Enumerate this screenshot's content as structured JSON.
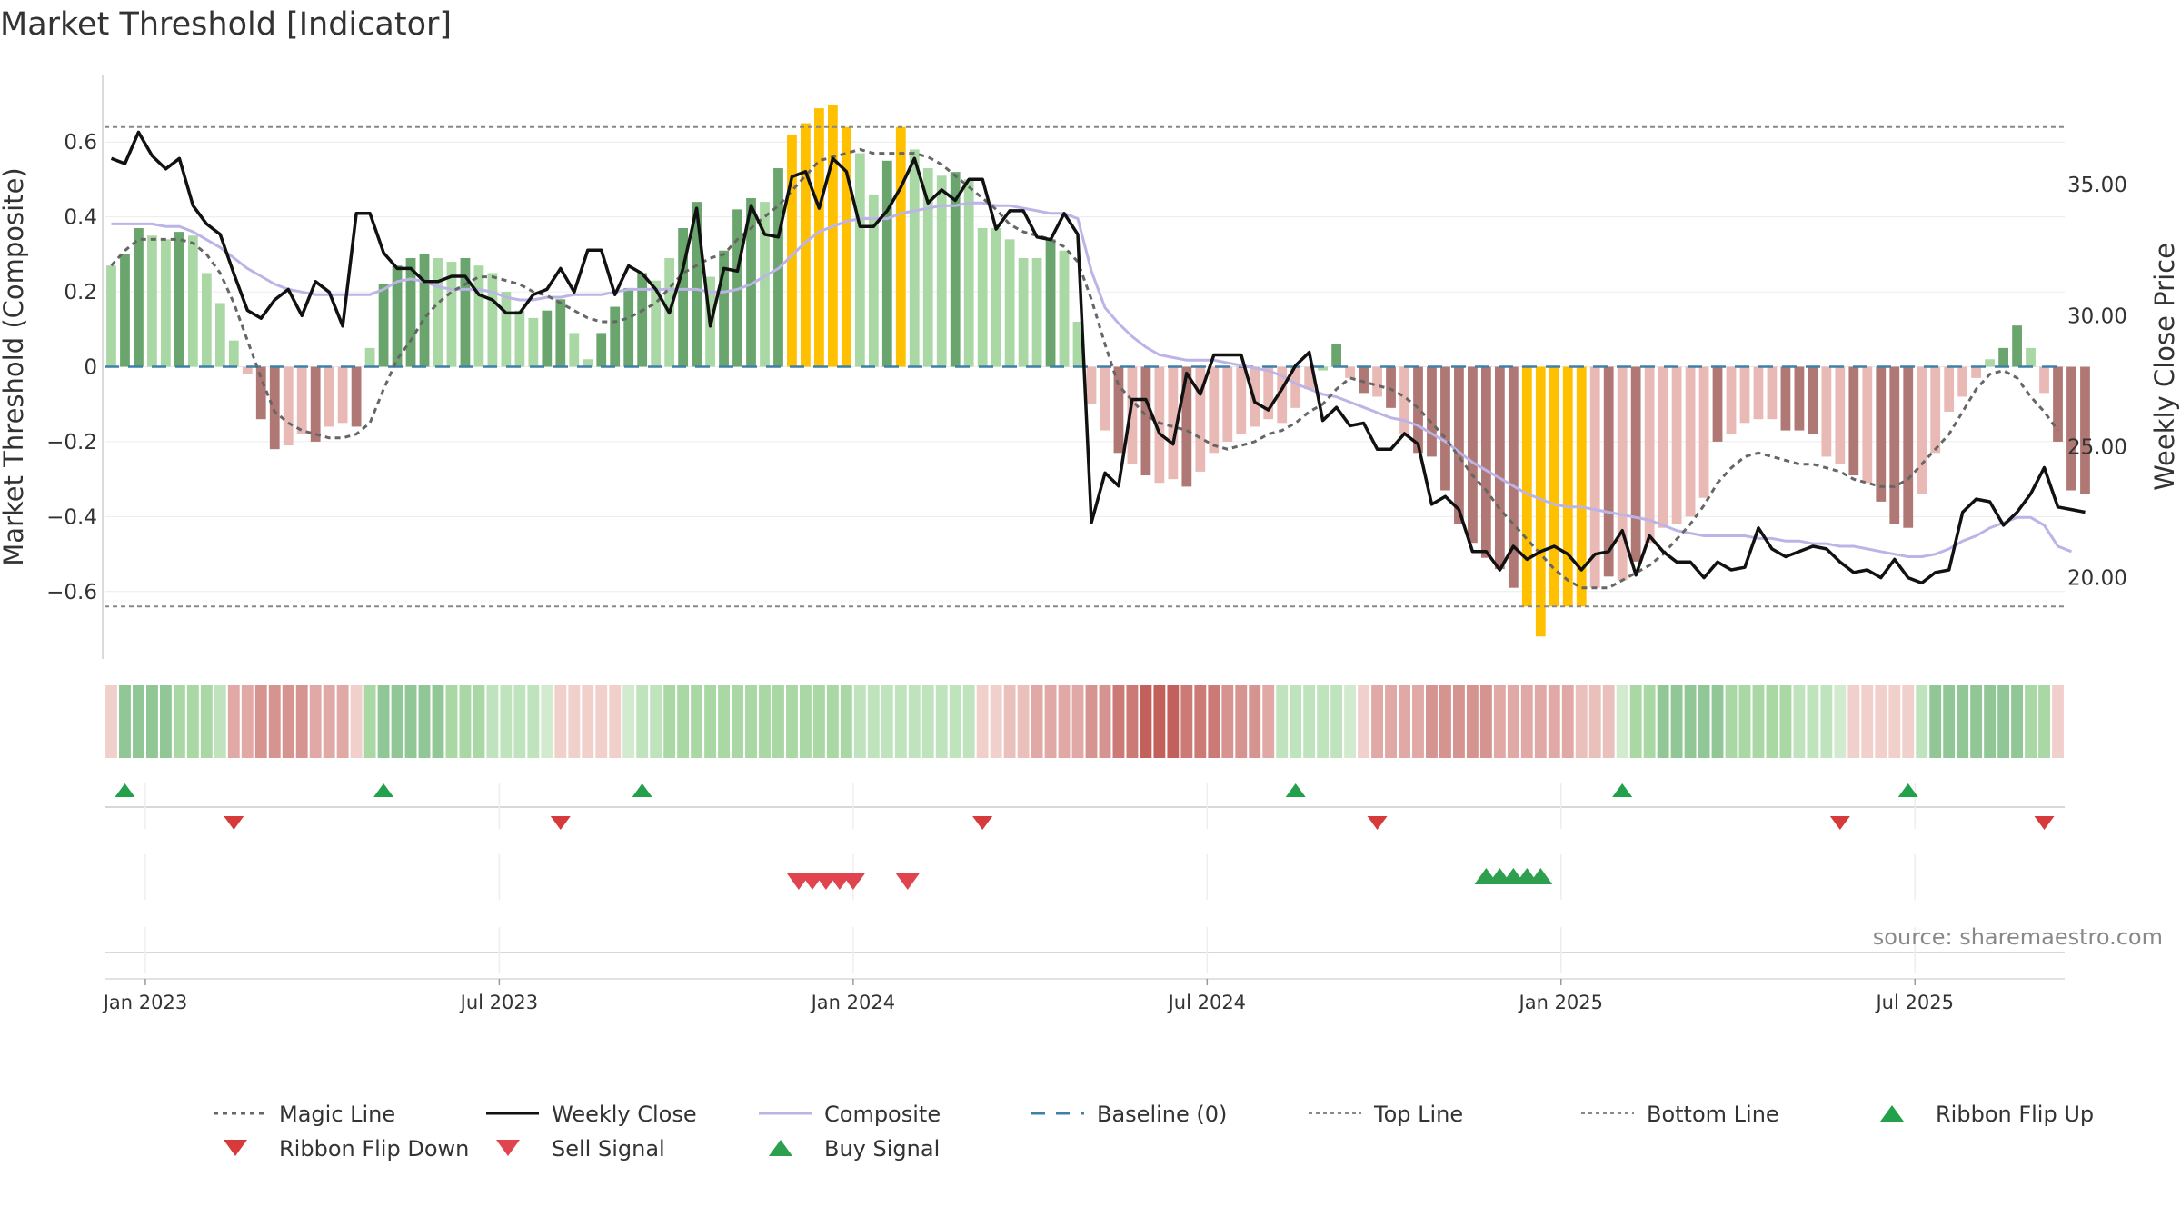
{
  "chart_data": {
    "type": "bar",
    "title": "Market Threshold [Indicator]",
    "ylabel": "Market Threshold (Composite)",
    "y2label": "Weekly Close Price",
    "source": "source: sharemaestro.com",
    "ylim": [
      -0.78,
      0.78
    ],
    "y2lim": [
      16.9,
      39.2
    ],
    "yticks": [
      -0.6,
      -0.4,
      -0.2,
      0,
      0.2,
      0.4,
      0.6
    ],
    "ytick_labels": [
      "−0.6",
      "−0.4",
      "−0.2",
      "0",
      "0.2",
      "0.4",
      "0.6"
    ],
    "y2ticks": [
      20,
      25,
      30,
      35
    ],
    "y2tick_labels": [
      "20.00",
      "25.00",
      "30.00",
      "35.00"
    ],
    "xticks": [
      {
        "label": "Jan 2023",
        "week": 3
      },
      {
        "label": "Jul 2023",
        "week": 29
      },
      {
        "label": "Jan 2024",
        "week": 55
      },
      {
        "label": "Jul 2024",
        "week": 81
      },
      {
        "label": "Jan 2025",
        "week": 107
      },
      {
        "label": "Jul 2025",
        "week": 133
      }
    ],
    "week_count": 144,
    "top_line": 0.64,
    "bottom_line": -0.64,
    "baseline": 0,
    "composite_bars": [
      0.27,
      0.3,
      0.37,
      0.35,
      0.34,
      0.36,
      0.35,
      0.25,
      0.17,
      0.07,
      -0.02,
      -0.14,
      -0.22,
      -0.21,
      -0.18,
      -0.2,
      -0.16,
      -0.15,
      -0.16,
      0.05,
      0.22,
      0.27,
      0.29,
      0.3,
      0.29,
      0.28,
      0.29,
      0.27,
      0.25,
      0.2,
      0.15,
      0.13,
      0.15,
      0.18,
      0.09,
      0.02,
      0.09,
      0.16,
      0.21,
      0.25,
      0.23,
      0.29,
      0.37,
      0.44,
      0.24,
      0.31,
      0.42,
      0.45,
      0.44,
      0.53,
      0.62,
      0.65,
      0.69,
      0.7,
      0.64,
      0.57,
      0.46,
      0.55,
      0.64,
      0.58,
      0.53,
      0.51,
      0.52,
      0.5,
      0.37,
      0.37,
      0.34,
      0.29,
      0.29,
      0.34,
      0.31,
      0.12,
      -0.1,
      -0.17,
      -0.23,
      -0.26,
      -0.29,
      -0.31,
      -0.3,
      -0.32,
      -0.28,
      -0.23,
      -0.2,
      -0.18,
      -0.16,
      -0.14,
      -0.15,
      -0.11,
      -0.06,
      -0.01,
      0.06,
      -0.03,
      -0.07,
      -0.08,
      -0.11,
      -0.18,
      -0.23,
      -0.24,
      -0.33,
      -0.42,
      -0.47,
      -0.51,
      -0.54,
      -0.59,
      -0.64,
      -0.72,
      -0.64,
      -0.64,
      -0.64,
      -0.59,
      -0.56,
      -0.57,
      -0.52,
      -0.47,
      -0.43,
      -0.42,
      -0.4,
      -0.35,
      -0.2,
      -0.18,
      -0.15,
      -0.14,
      -0.14,
      -0.17,
      -0.17,
      -0.18,
      -0.24,
      -0.26,
      -0.29,
      -0.31,
      -0.36,
      -0.42,
      -0.43,
      -0.34,
      -0.23,
      -0.12,
      -0.08,
      -0.03,
      0.02,
      0.05,
      0.11,
      0.05,
      -0.07,
      -0.2,
      -0.33,
      -0.34
    ],
    "composite_bar_colors": [
      "#a9d8a5",
      "#6aa56d",
      "#6aa56d",
      "#a9d8a5",
      "#a9d8a5",
      "#6aa56d",
      "#a9d8a5",
      "#a9d8a5",
      "#a9d8a5",
      "#a9d8a5",
      "#e9b9b5",
      "#b07875",
      "#b07875",
      "#e9b9b5",
      "#e9b9b5",
      "#b07875",
      "#e9b9b5",
      "#e9b9b5",
      "#b07875",
      "#a9d8a5",
      "#6aa56d",
      "#6aa56d",
      "#6aa56d",
      "#6aa56d",
      "#a9d8a5",
      "#a9d8a5",
      "#6aa56d",
      "#a9d8a5",
      "#a9d8a5",
      "#a9d8a5",
      "#a9d8a5",
      "#a9d8a5",
      "#6aa56d",
      "#6aa56d",
      "#a9d8a5",
      "#a9d8a5",
      "#6aa56d",
      "#6aa56d",
      "#6aa56d",
      "#6aa56d",
      "#a9d8a5",
      "#a9d8a5",
      "#6aa56d",
      "#6aa56d",
      "#a9d8a5",
      "#6aa56d",
      "#6aa56d",
      "#6aa56d",
      "#a9d8a5",
      "#6aa56d",
      "#ffc000",
      "#ffc000",
      "#ffc000",
      "#ffc000",
      "#ffc000",
      "#a9d8a5",
      "#a9d8a5",
      "#6aa56d",
      "#ffc000",
      "#a9d8a5",
      "#a9d8a5",
      "#a9d8a5",
      "#6aa56d",
      "#a9d8a5",
      "#a9d8a5",
      "#a9d8a5",
      "#a9d8a5",
      "#a9d8a5",
      "#a9d8a5",
      "#6aa56d",
      "#a9d8a5",
      "#a9d8a5",
      "#e9b9b5",
      "#e9b9b5",
      "#b07875",
      "#e9b9b5",
      "#b07875",
      "#e9b9b5",
      "#e9b9b5",
      "#b07875",
      "#e9b9b5",
      "#e9b9b5",
      "#e9b9b5",
      "#e9b9b5",
      "#e9b9b5",
      "#e9b9b5",
      "#e9b9b5",
      "#e9b9b5",
      "#e9b9b5",
      "#a9d8a5",
      "#6aa56d",
      "#e9b9b5",
      "#b07875",
      "#e9b9b5",
      "#b07875",
      "#e9b9b5",
      "#b07875",
      "#b07875",
      "#b07875",
      "#b07875",
      "#b07875",
      "#b07875",
      "#b07875",
      "#b07875",
      "#ffc000",
      "#ffc000",
      "#ffc000",
      "#ffc000",
      "#ffc000",
      "#e9b9b5",
      "#b07875",
      "#e9b9b5",
      "#b07875",
      "#e9b9b5",
      "#e9b9b5",
      "#e9b9b5",
      "#e9b9b5",
      "#e9b9b5",
      "#b07875",
      "#e9b9b5",
      "#e9b9b5",
      "#e9b9b5",
      "#e9b9b5",
      "#b07875",
      "#b07875",
      "#b07875",
      "#e9b9b5",
      "#e9b9b5",
      "#b07875",
      "#e9b9b5",
      "#b07875",
      "#b07875",
      "#b07875",
      "#e9b9b5",
      "#e9b9b5",
      "#e9b9b5",
      "#e9b9b5",
      "#e9b9b5",
      "#a9d8a5",
      "#6aa56d",
      "#6aa56d",
      "#a9d8a5",
      "#e9b9b5",
      "#b07875",
      "#b07875",
      "#b07875"
    ],
    "weekly_close": [
      36.0,
      35.8,
      37.0,
      36.1,
      35.6,
      36.0,
      34.2,
      33.5,
      33.1,
      31.6,
      30.2,
      29.9,
      30.6,
      31.0,
      30.0,
      31.3,
      30.9,
      29.6,
      33.9,
      33.9,
      32.4,
      31.8,
      31.8,
      31.3,
      31.3,
      31.5,
      31.5,
      30.8,
      30.6,
      30.1,
      30.1,
      30.8,
      31.0,
      31.8,
      30.9,
      32.5,
      32.5,
      30.8,
      31.9,
      31.6,
      31.0,
      30.1,
      31.8,
      34.1,
      29.6,
      31.8,
      31.7,
      34.2,
      33.1,
      33.0,
      35.3,
      35.5,
      34.1,
      36.0,
      35.5,
      33.4,
      33.4,
      34.0,
      34.9,
      36.0,
      34.3,
      34.8,
      34.4,
      35.2,
      35.2,
      33.3,
      34.0,
      34.0,
      33.0,
      32.9,
      33.9,
      33.1,
      22.1,
      24.0,
      23.5,
      26.8,
      26.8,
      25.5,
      25.1,
      27.8,
      27.0,
      28.5,
      28.5,
      28.5,
      26.7,
      26.4,
      27.2,
      28.1,
      28.6,
      26.0,
      26.5,
      25.8,
      25.9,
      24.9,
      24.9,
      25.5,
      25.1,
      22.8,
      23.1,
      22.6,
      21.0,
      21.0,
      20.3,
      21.2,
      20.7,
      21.0,
      21.2,
      20.9,
      20.3,
      20.9,
      21.0,
      21.8,
      20.1,
      21.6,
      21.0,
      20.6,
      20.6,
      20.0,
      20.6,
      20.3,
      20.4,
      21.9,
      21.1,
      20.8,
      21.0,
      21.2,
      21.1,
      20.6,
      20.2,
      20.3,
      20.0,
      20.7,
      20.0,
      19.8,
      20.2,
      20.3,
      22.5,
      23.0,
      22.9,
      22.0,
      22.5,
      23.2,
      24.2,
      22.7,
      22.6,
      22.5
    ],
    "magic_line": [
      0.27,
      0.31,
      0.34,
      0.34,
      0.34,
      0.34,
      0.33,
      0.3,
      0.25,
      0.17,
      0.07,
      -0.03,
      -0.12,
      -0.15,
      -0.17,
      -0.18,
      -0.19,
      -0.19,
      -0.18,
      -0.15,
      -0.06,
      0.02,
      0.07,
      0.13,
      0.17,
      0.2,
      0.22,
      0.24,
      0.24,
      0.23,
      0.22,
      0.2,
      0.19,
      0.17,
      0.15,
      0.13,
      0.12,
      0.12,
      0.13,
      0.15,
      0.17,
      0.21,
      0.25,
      0.27,
      0.29,
      0.3,
      0.34,
      0.37,
      0.4,
      0.43,
      0.47,
      0.51,
      0.55,
      0.56,
      0.57,
      0.58,
      0.57,
      0.57,
      0.57,
      0.57,
      0.56,
      0.54,
      0.51,
      0.48,
      0.45,
      0.42,
      0.38,
      0.36,
      0.35,
      0.34,
      0.32,
      0.28,
      0.18,
      0.06,
      -0.05,
      -0.09,
      -0.13,
      -0.15,
      -0.16,
      -0.17,
      -0.19,
      -0.21,
      -0.22,
      -0.21,
      -0.2,
      -0.18,
      -0.17,
      -0.15,
      -0.12,
      -0.1,
      -0.06,
      -0.03,
      -0.04,
      -0.05,
      -0.06,
      -0.08,
      -0.11,
      -0.15,
      -0.19,
      -0.24,
      -0.29,
      -0.33,
      -0.38,
      -0.42,
      -0.46,
      -0.5,
      -0.54,
      -0.57,
      -0.59,
      -0.59,
      -0.59,
      -0.57,
      -0.55,
      -0.53,
      -0.5,
      -0.46,
      -0.42,
      -0.37,
      -0.31,
      -0.27,
      -0.24,
      -0.23,
      -0.24,
      -0.25,
      -0.26,
      -0.26,
      -0.27,
      -0.28,
      -0.3,
      -0.31,
      -0.32,
      -0.32,
      -0.3,
      -0.26,
      -0.22,
      -0.18,
      -0.12,
      -0.06,
      -0.02,
      -0.01,
      -0.03,
      -0.08,
      -0.12,
      -0.17
    ],
    "composite_line": [
      33.5,
      33.5,
      33.5,
      33.5,
      33.4,
      33.4,
      33.2,
      32.9,
      32.6,
      32.2,
      31.8,
      31.5,
      31.2,
      31.0,
      30.9,
      30.8,
      30.8,
      30.8,
      30.8,
      30.8,
      31.0,
      31.3,
      31.4,
      31.3,
      31.1,
      31.0,
      31.0,
      31.0,
      30.9,
      30.7,
      30.6,
      30.6,
      30.7,
      30.7,
      30.8,
      30.8,
      30.8,
      30.9,
      31.0,
      31.0,
      31.0,
      31.0,
      31.0,
      31.0,
      30.9,
      30.9,
      31.0,
      31.2,
      31.5,
      31.8,
      32.3,
      32.8,
      33.2,
      33.4,
      33.6,
      33.7,
      33.7,
      33.7,
      33.9,
      34.0,
      34.1,
      34.2,
      34.2,
      34.3,
      34.3,
      34.2,
      34.2,
      34.1,
      34.0,
      33.9,
      33.9,
      33.7,
      31.7,
      30.3,
      29.7,
      29.2,
      28.8,
      28.5,
      28.4,
      28.3,
      28.3,
      28.3,
      28.2,
      28.1,
      28.0,
      27.9,
      27.7,
      27.4,
      27.2,
      27.0,
      26.9,
      26.7,
      26.5,
      26.3,
      26.1,
      26.0,
      25.8,
      25.5,
      25.2,
      24.8,
      24.4,
      24.1,
      23.8,
      23.5,
      23.2,
      23.0,
      22.8,
      22.7,
      22.7,
      22.6,
      22.5,
      22.4,
      22.3,
      22.2,
      22.0,
      21.8,
      21.7,
      21.6,
      21.6,
      21.6,
      21.6,
      21.5,
      21.5,
      21.4,
      21.4,
      21.3,
      21.3,
      21.2,
      21.2,
      21.1,
      21.0,
      20.9,
      20.8,
      20.8,
      20.9,
      21.1,
      21.4,
      21.6,
      21.9,
      22.1,
      22.3,
      22.3,
      22.0,
      21.2,
      21.0
    ],
    "ribbon_colors": [
      "#f1d0cc",
      "#91c796",
      "#91c796",
      "#91c796",
      "#91c796",
      "#a9d8a5",
      "#a9d8a5",
      "#a9d8a5",
      "#bfe3bd",
      "#e0a9a5",
      "#e0a9a5",
      "#d59490",
      "#d59490",
      "#d59490",
      "#d59490",
      "#e0a9a5",
      "#e0a9a5",
      "#e0a9a5",
      "#f1d0cc",
      "#a9d8a5",
      "#91c796",
      "#91c796",
      "#91c796",
      "#91c796",
      "#91c796",
      "#a9d8a5",
      "#a9d8a5",
      "#a9d8a5",
      "#bfe3bd",
      "#bfe3bd",
      "#bfe3bd",
      "#bfe3bd",
      "#d2ebcf",
      "#f1d0cc",
      "#f1d0cc",
      "#f1d0cc",
      "#f1d0cc",
      "#f1d0cc",
      "#d2ebcf",
      "#bfe3bd",
      "#bfe3bd",
      "#a9d8a5",
      "#a9d8a5",
      "#a9d8a5",
      "#a9d8a5",
      "#a9d8a5",
      "#a9d8a5",
      "#a9d8a5",
      "#a9d8a5",
      "#a9d8a5",
      "#a9d8a5",
      "#a9d8a5",
      "#a9d8a5",
      "#a9d8a5",
      "#a9d8a5",
      "#bfe3bd",
      "#bfe3bd",
      "#bfe3bd",
      "#bfe3bd",
      "#bfe3bd",
      "#bfe3bd",
      "#bfe3bd",
      "#bfe3bd",
      "#bfe3bd",
      "#f1d0cc",
      "#f1d0cc",
      "#eac0bc",
      "#eac0bc",
      "#e0a9a5",
      "#e0a9a5",
      "#e0a9a5",
      "#e0a9a5",
      "#d59490",
      "#d59490",
      "#cc7a75",
      "#cc7a75",
      "#c2605b",
      "#c2605b",
      "#c2605b",
      "#cc7a75",
      "#cc7a75",
      "#cc7a75",
      "#d59490",
      "#d59490",
      "#d59490",
      "#e0a9a5",
      "#bfe3bd",
      "#bfe3bd",
      "#bfe3bd",
      "#bfe3bd",
      "#bfe3bd",
      "#d2ebcf",
      "#f1d0cc",
      "#e0a9a5",
      "#e0a9a5",
      "#e0a9a5",
      "#e0a9a5",
      "#d59490",
      "#d59490",
      "#d59490",
      "#d59490",
      "#d59490",
      "#e0a9a5",
      "#e0a9a5",
      "#e0a9a5",
      "#e0a9a5",
      "#e0a9a5",
      "#e0a9a5",
      "#eac0bc",
      "#eac0bc",
      "#eac0bc",
      "#d2ebcf",
      "#a9d8a5",
      "#a9d8a5",
      "#91c796",
      "#91c796",
      "#91c796",
      "#91c796",
      "#91c796",
      "#a9d8a5",
      "#a9d8a5",
      "#a9d8a5",
      "#a9d8a5",
      "#a9d8a5",
      "#bfe3bd",
      "#bfe3bd",
      "#bfe3bd",
      "#d2ebcf",
      "#f1d0cc",
      "#f1d0cc",
      "#f1d0cc",
      "#f1d0cc",
      "#f1d0cc",
      "#bfe3bd",
      "#91c796",
      "#91c796",
      "#91c796",
      "#91c796",
      "#91c796",
      "#91c796",
      "#91c796",
      "#a9d8a5",
      "#a9d8a5",
      "#f1d0cc"
    ],
    "ribbon_flip_up_weeks": [
      1.5,
      20.5,
      39.5,
      87.5,
      111.5,
      132.5
    ],
    "ribbon_flip_down_weeks": [
      9.5,
      33.5,
      64.5,
      93.5,
      127.5,
      142.5
    ],
    "sell_signal_weeks": [
      51.0,
      52.0,
      53.0,
      54.0,
      55.0,
      59.0
    ],
    "buy_signal_weeks": [
      101.5,
      102.5,
      103.5,
      104.5,
      105.5
    ],
    "legend": [
      {
        "label": "Magic Line",
        "kind": "dotted",
        "color": "#666666"
      },
      {
        "label": "Weekly Close",
        "kind": "solid",
        "color": "#111111"
      },
      {
        "label": "Composite",
        "kind": "solid",
        "color": "#bcb4e6"
      },
      {
        "label": "Baseline (0)",
        "kind": "dashed",
        "color": "#3f80a8"
      },
      {
        "label": "Top Line",
        "kind": "dotted-thin",
        "color": "#888888"
      },
      {
        "label": "Bottom Line",
        "kind": "dotted-thin",
        "color": "#888888"
      },
      {
        "label": "Ribbon Flip Up",
        "kind": "tri-up",
        "color": "#23a04a"
      },
      {
        "label": "Ribbon Flip Down",
        "kind": "tri-down",
        "color": "#d63a3a"
      },
      {
        "label": "Sell Signal",
        "kind": "tri-down",
        "color": "#e0454f"
      },
      {
        "label": "Buy Signal",
        "kind": "tri-up",
        "color": "#2e9e4f"
      }
    ]
  }
}
